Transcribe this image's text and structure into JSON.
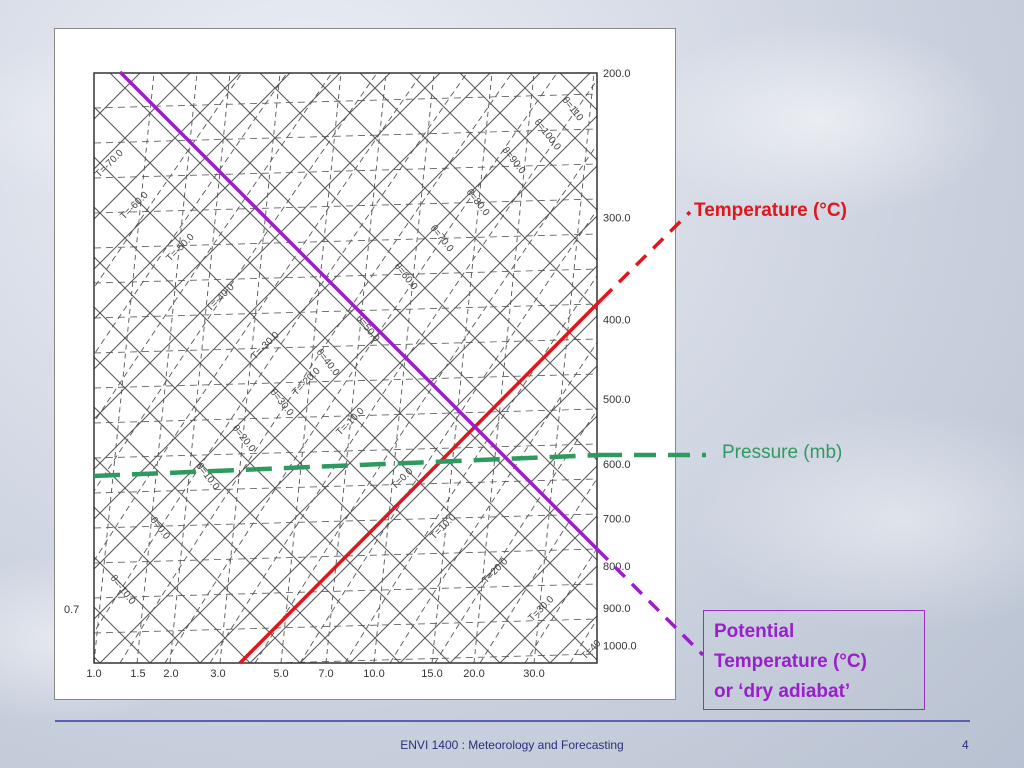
{
  "pressure_ticks": [
    {
      "label": "200.0",
      "p": 200
    },
    {
      "label": "300.0",
      "p": 300
    },
    {
      "label": "400.0",
      "p": 400
    },
    {
      "label": "500.0",
      "p": 500
    },
    {
      "label": "600.0",
      "p": 600
    },
    {
      "label": "700.0",
      "p": 700
    },
    {
      "label": "800.0",
      "p": 800
    },
    {
      "label": "900.0",
      "p": 900
    },
    {
      "label": "1000.0",
      "p": 1000
    }
  ],
  "mixing_ratio_ticks": [
    "1.0",
    "1.5",
    "2.0",
    "3.0",
    "5.0",
    "7.0",
    "10.0",
    "15.0",
    "20.0",
    "30.0"
  ],
  "left_label": "0.7",
  "isotherm_labels": [
    "T=-70.0",
    "T=-60.0",
    "T=-50.0",
    "T=-40.0",
    "T=-30.0",
    "T=-20.0",
    "T=-10.0",
    "T=0.0",
    "T=10.0",
    "T=20.0",
    "T=30.0",
    "T=40"
  ],
  "adiabat_labels": [
    "θ=110",
    "θ=100.0",
    "θ=90.0",
    "θ=80.0",
    "θ=70.0",
    "θ=60.0",
    "θ=50.0",
    "θ=40.0",
    "θ=30.0",
    "θ=20.0",
    "θ=10.0",
    "θ=0.0",
    "θ=-10.0"
  ],
  "annotations": {
    "temperature": "Temperature (°C)",
    "pressure": "Pressure (mb)",
    "potential_lines": [
      "Potential",
      "Temperature (°C)",
      "or ‘dry adiabat’"
    ]
  },
  "footer": {
    "title": "ENVI 1400 : Meteorology and Forecasting",
    "page": "4"
  },
  "colors": {
    "temperature": "#e0161c",
    "pressure": "#2e9a5f",
    "potential": "#9b1fc9",
    "grid": "#555555",
    "footer_rule": "#5a5fb0"
  }
}
